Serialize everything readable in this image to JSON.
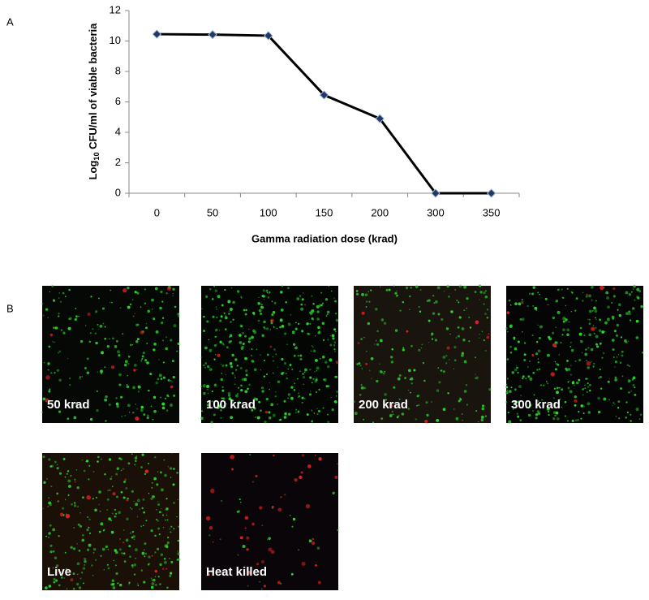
{
  "panel_labels": [
    "A",
    "B"
  ],
  "chart_data": {
    "type": "line",
    "y_label": {
      "prefix": "Log",
      "subscript": "10",
      "suffix": " CFU/ml  of viable bacteria"
    },
    "x_label": "Gamma radiation dose (krad)",
    "categories": [
      "0",
      "50",
      "100",
      "150",
      "200",
      "300",
      "350"
    ],
    "series": [
      {
        "color": "#000000",
        "marker_color": "#1f3864",
        "values": [
          10.45,
          10.42,
          10.35,
          6.45,
          4.9,
          0,
          0
        ]
      }
    ],
    "ylim": [
      0,
      12
    ],
    "yticks": [
      0,
      2,
      4,
      6,
      8,
      10,
      12
    ],
    "grid": false
  },
  "images": [
    {
      "label": "50 krad"
    },
    {
      "label": "100 krad"
    },
    {
      "label": "200 krad"
    },
    {
      "label": "300 krad"
    },
    {
      "label": "Live"
    },
    {
      "label": "Heat killed"
    }
  ]
}
